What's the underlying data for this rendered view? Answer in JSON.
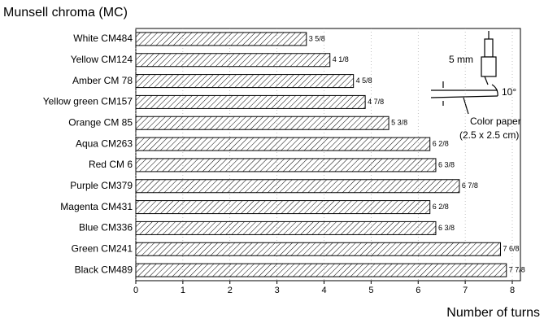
{
  "chart_data": {
    "type": "bar",
    "orientation": "horizontal",
    "title": "Munsell chroma (MC)",
    "x_label": "Number of turns",
    "categories": [
      "White CM484",
      "Yellow CM124",
      "Amber CM 78",
      "Yellow green CM157",
      "Orange CM 85",
      "Aqua CM263",
      "Red CM 6",
      "Purple CM379",
      "Magenta CM431",
      "Blue CM336",
      "Green CM241",
      "Black CM489"
    ],
    "values": [
      3.625,
      4.125,
      4.625,
      4.875,
      5.375,
      6.25,
      6.375,
      6.875,
      6.25,
      6.375,
      7.75,
      7.875
    ],
    "value_labels": [
      "3 5/8",
      "4 1/8",
      "4 5/8",
      "4 7/8",
      "5 3/8",
      "6 2/8",
      "6 3/8",
      "6 7/8",
      "6 2/8",
      "6 3/8",
      "7 6/8",
      "7 7/8"
    ],
    "color": "#000000",
    "xlim": [
      0,
      8
    ],
    "xticks": [
      0,
      1,
      2,
      3,
      4,
      5,
      6,
      7,
      8
    ],
    "grid": true,
    "annotations": [
      "5 mm",
      "10°",
      "Color paper",
      "(2.5 x 2.5 cm)"
    ]
  }
}
